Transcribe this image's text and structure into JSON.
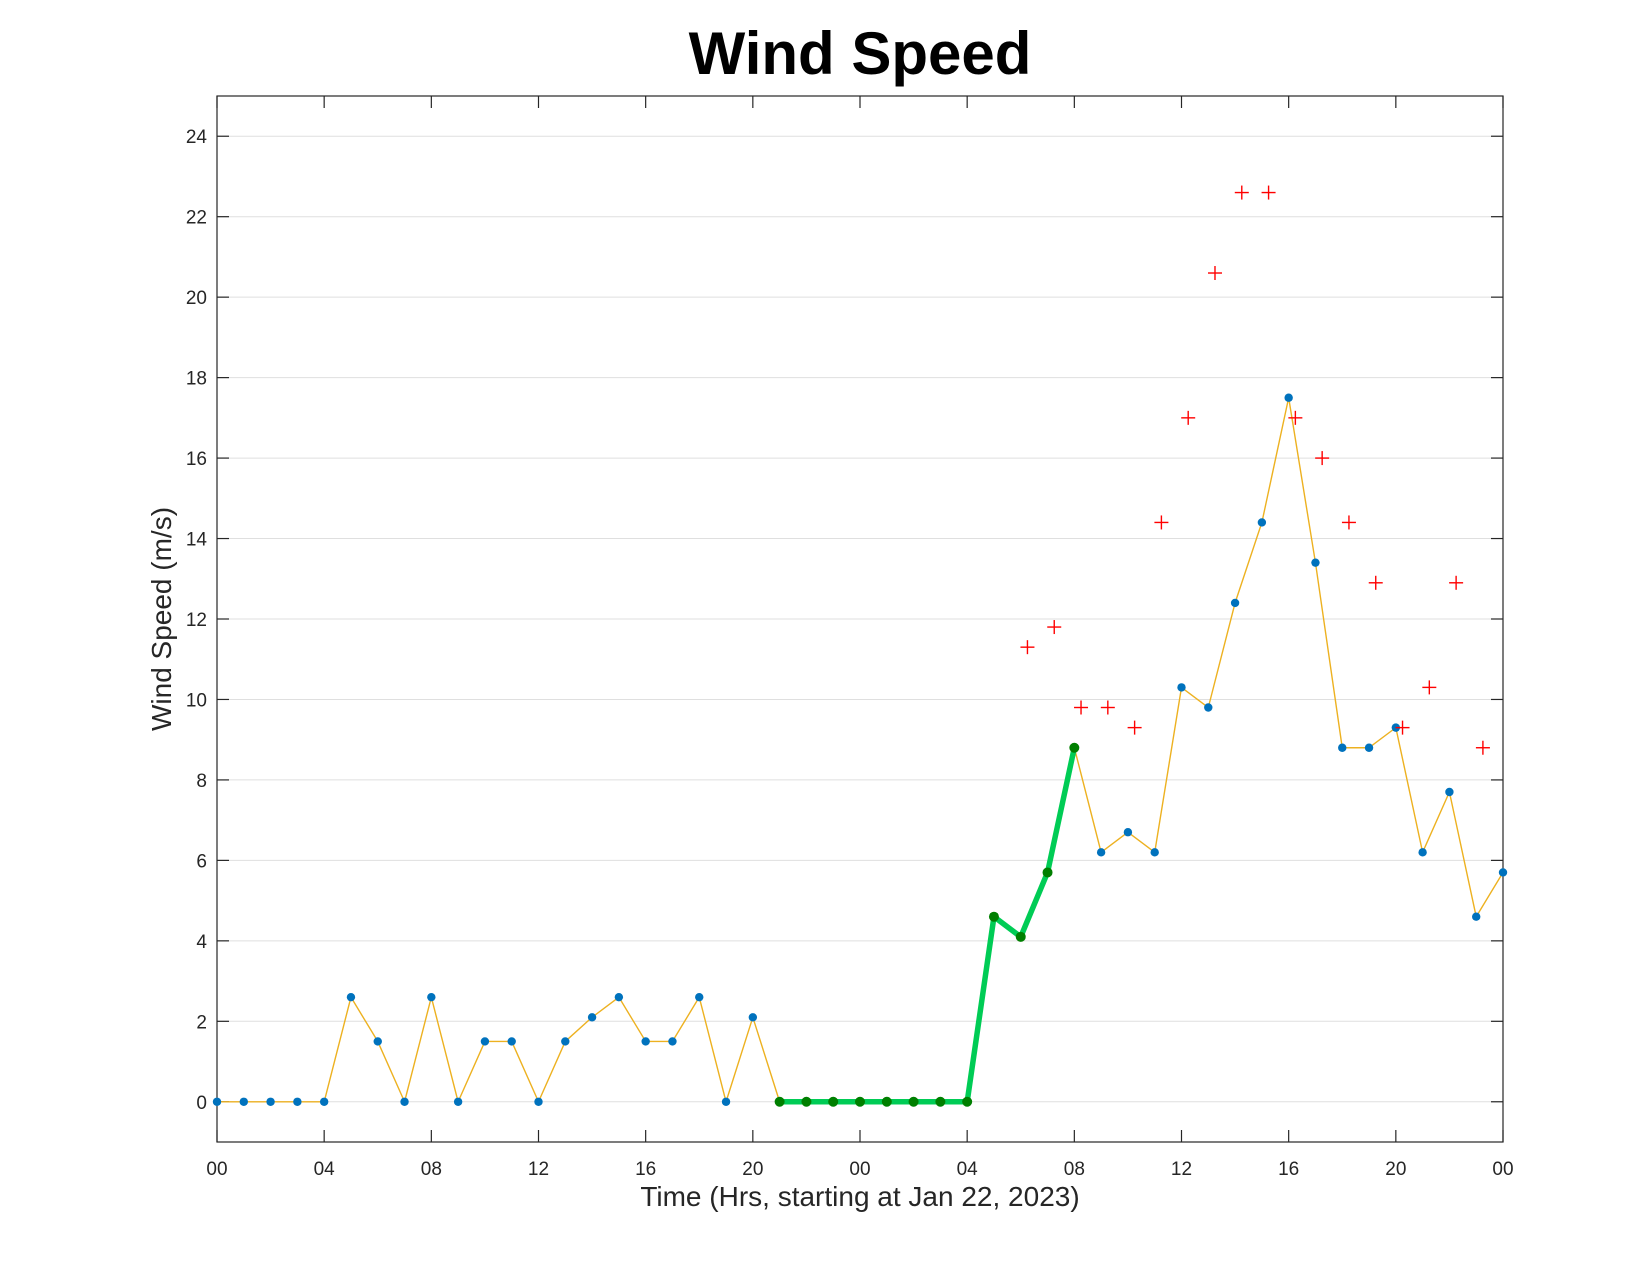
{
  "chart_data": {
    "type": "line",
    "title": "Wind Speed",
    "xlabel": "Time (Hrs, starting at Jan 22, 2023)",
    "ylabel": "Wind Speed (m/s)",
    "ylim": [
      -1,
      25
    ],
    "xlim_hours": [
      0,
      48
    ],
    "x_tick_hours": [
      0,
      4,
      8,
      12,
      16,
      20,
      24,
      28,
      32,
      36,
      40,
      44,
      48
    ],
    "x_tick_labels": [
      "00",
      "04",
      "08",
      "12",
      "16",
      "20",
      "00",
      "04",
      "08",
      "12",
      "16",
      "20",
      "00"
    ],
    "y_ticks": [
      0,
      2,
      4,
      6,
      8,
      10,
      12,
      14,
      16,
      18,
      20,
      22,
      24
    ],
    "y_tick_labels": [
      "0",
      "2",
      "4",
      "6",
      "8",
      "10",
      "12",
      "14",
      "16",
      "18",
      "20",
      "22",
      "24"
    ],
    "grid": "horizontal",
    "series": [
      {
        "style": "thin-orange-line-blue-dots",
        "line_color": "#EDB120",
        "marker_color": "#0072BD",
        "hours": [
          0,
          1,
          2,
          3,
          4,
          5,
          6,
          7,
          8,
          9,
          10,
          11,
          12,
          13,
          14,
          15,
          16,
          17,
          18,
          19,
          20,
          21,
          22,
          23,
          24,
          25,
          26,
          27,
          28,
          29,
          30,
          31,
          32,
          33,
          34,
          35,
          36,
          37,
          38,
          39,
          40,
          41,
          42,
          43,
          44,
          45,
          46,
          47,
          48
        ],
        "values": [
          0,
          0,
          0,
          0,
          0,
          2.6,
          1.5,
          0,
          2.6,
          0,
          1.5,
          1.5,
          0,
          1.5,
          2.1,
          2.6,
          1.5,
          1.5,
          2.6,
          0,
          2.1,
          0,
          0,
          0,
          0,
          0,
          0,
          0,
          0,
          4.6,
          4.1,
          5.7,
          8.8,
          6.2,
          6.7,
          6.2,
          10.3,
          9.8,
          12.4,
          14.4,
          17.5,
          13.4,
          8.8,
          8.8,
          9.3,
          6.2,
          7.7,
          4.6,
          5.7
        ]
      },
      {
        "style": "thick-green-line-dark-green-dots",
        "line_color": "#00CC55",
        "marker_color": "#007F00",
        "hours": [
          21,
          22,
          23,
          24,
          25,
          26,
          27,
          28,
          29,
          30,
          31,
          32
        ],
        "values": [
          0,
          0,
          0,
          0,
          0,
          0,
          0,
          0,
          4.6,
          4.1,
          5.7,
          8.8
        ]
      },
      {
        "style": "red-plus-markers",
        "marker_color": "#FF0000",
        "hours": [
          30.25,
          31.25,
          32.25,
          33.25,
          34.25,
          35.25,
          36.25,
          37.25,
          38.25,
          39.25,
          40.25,
          41.25,
          42.25,
          43.25,
          44.25,
          45.25,
          46.25,
          47.25
        ],
        "values": [
          11.3,
          11.8,
          9.8,
          9.8,
          9.3,
          14.4,
          17.0,
          20.6,
          22.6,
          22.6,
          17.0,
          16.0,
          14.4,
          12.9,
          9.3,
          10.3,
          12.9,
          8.8
        ]
      }
    ]
  }
}
